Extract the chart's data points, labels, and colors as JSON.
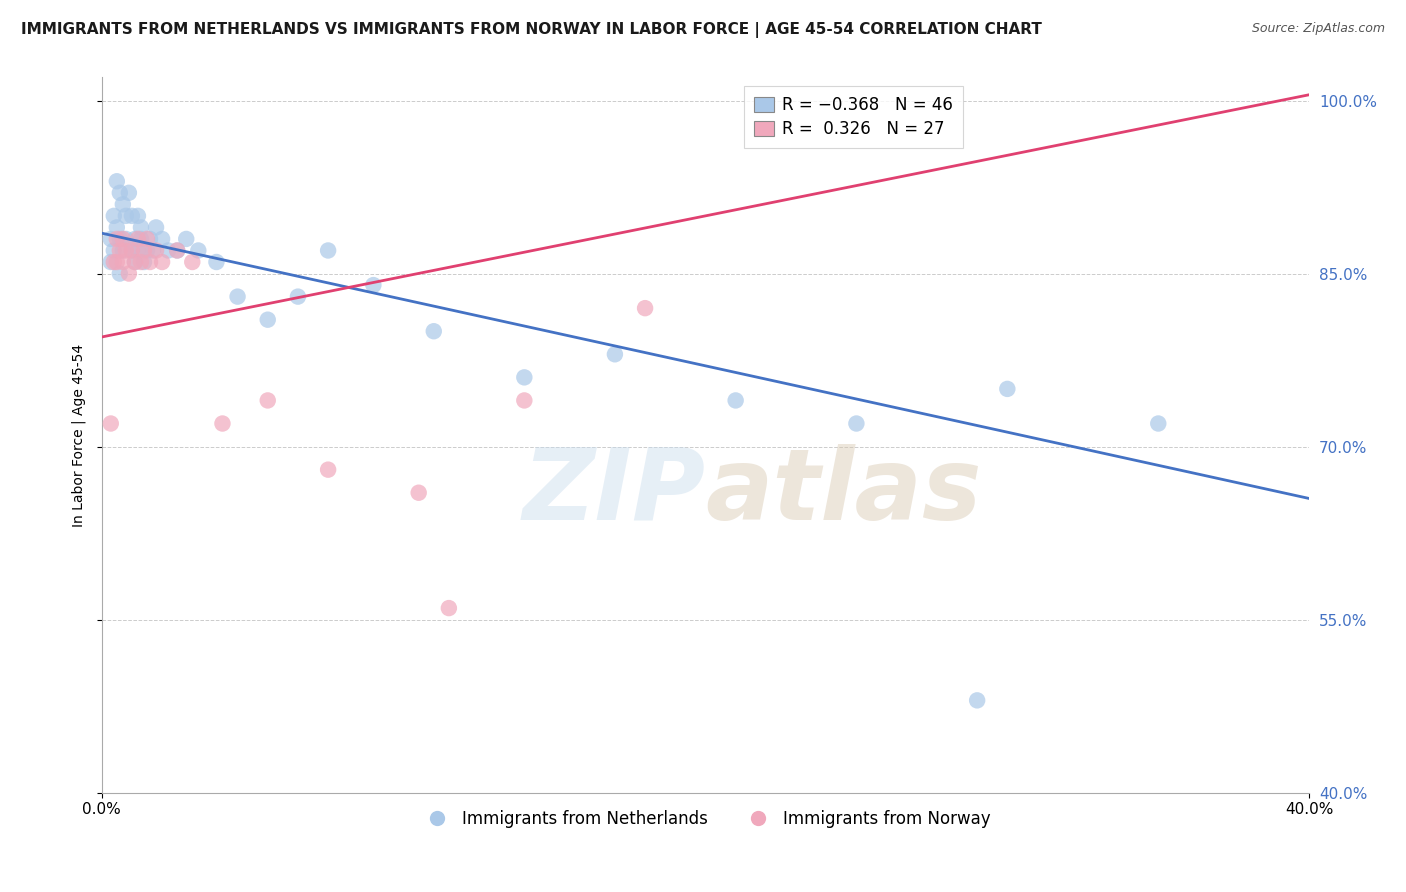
{
  "title": "IMMIGRANTS FROM NETHERLANDS VS IMMIGRANTS FROM NORWAY IN LABOR FORCE | AGE 45-54 CORRELATION CHART",
  "source": "Source: ZipAtlas.com",
  "ylabel": "In Labor Force | Age 45-54",
  "xlim": [
    0.0,
    0.4
  ],
  "ylim": [
    0.4,
    1.02
  ],
  "x_ticks": [
    0.0,
    0.4
  ],
  "y_ticks": [
    1.0,
    0.85,
    0.7,
    0.55,
    0.4
  ],
  "color_nl_fill": "#aac8e8",
  "color_nl_edge": "#4472c4",
  "color_no_fill": "#f0a8bc",
  "color_no_edge": "#e04070",
  "color_ytick": "#4472c4",
  "background_color": "#ffffff",
  "legend_r_nl": "-0.368",
  "legend_n_nl": "46",
  "legend_r_no": "0.326",
  "legend_n_no": "27",
  "nl_x": [
    0.003,
    0.004,
    0.004,
    0.005,
    0.005,
    0.006,
    0.006,
    0.007,
    0.007,
    0.008,
    0.008,
    0.009,
    0.01,
    0.01,
    0.011,
    0.011,
    0.012,
    0.012,
    0.013,
    0.013,
    0.014,
    0.015,
    0.016,
    0.017,
    0.018,
    0.02,
    0.022,
    0.025,
    0.028,
    0.032,
    0.038,
    0.045,
    0.055,
    0.065,
    0.075,
    0.09,
    0.11,
    0.14,
    0.17,
    0.21,
    0.25,
    0.3,
    0.35,
    0.003,
    0.006,
    0.29
  ],
  "nl_y": [
    0.88,
    0.9,
    0.87,
    0.93,
    0.89,
    0.92,
    0.88,
    0.91,
    0.87,
    0.9,
    0.88,
    0.92,
    0.87,
    0.9,
    0.88,
    0.86,
    0.9,
    0.87,
    0.88,
    0.89,
    0.86,
    0.87,
    0.88,
    0.87,
    0.89,
    0.88,
    0.87,
    0.87,
    0.88,
    0.87,
    0.86,
    0.83,
    0.81,
    0.83,
    0.87,
    0.84,
    0.8,
    0.76,
    0.78,
    0.74,
    0.72,
    0.75,
    0.72,
    0.86,
    0.85,
    0.48
  ],
  "no_x": [
    0.003,
    0.004,
    0.005,
    0.005,
    0.006,
    0.007,
    0.007,
    0.008,
    0.009,
    0.01,
    0.011,
    0.012,
    0.013,
    0.014,
    0.015,
    0.016,
    0.018,
    0.02,
    0.025,
    0.03,
    0.04,
    0.055,
    0.075,
    0.105,
    0.14,
    0.18,
    0.115
  ],
  "no_y": [
    0.72,
    0.86,
    0.88,
    0.86,
    0.87,
    0.88,
    0.86,
    0.87,
    0.85,
    0.87,
    0.86,
    0.88,
    0.86,
    0.87,
    0.88,
    0.86,
    0.87,
    0.86,
    0.87,
    0.86,
    0.72,
    0.74,
    0.68,
    0.66,
    0.74,
    0.82,
    0.56
  ],
  "title_fontsize": 11,
  "source_fontsize": 9,
  "label_fontsize": 10,
  "tick_fontsize": 11,
  "legend_fontsize": 12
}
